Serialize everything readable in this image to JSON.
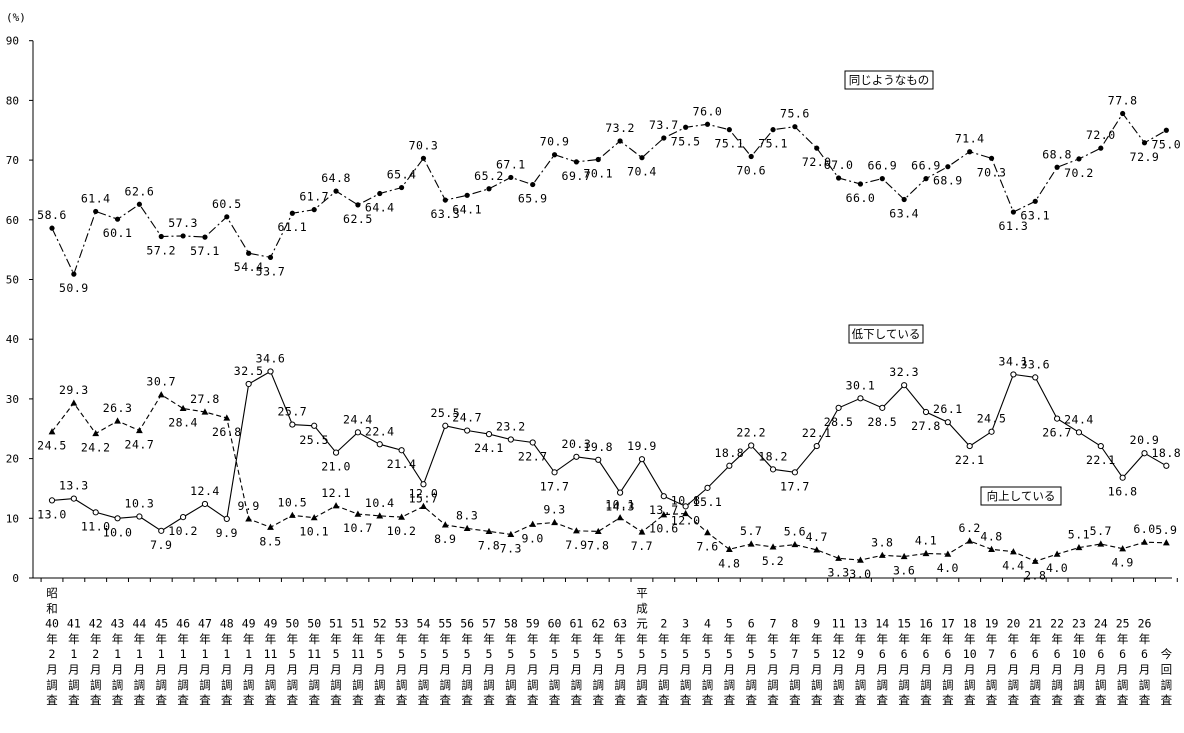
{
  "chart_data": {
    "type": "line",
    "ylabel": "(%)",
    "ylim": [
      0,
      90
    ],
    "yticks": [
      0,
      10,
      20,
      30,
      40,
      50,
      60,
      70,
      80,
      90
    ],
    "grid": false,
    "categories": [
      [
        "昭",
        "和",
        "40",
        "年",
        "2",
        "月",
        "調",
        "査"
      ],
      [
        "41",
        "年",
        "1",
        "月",
        "調",
        "査"
      ],
      [
        "42",
        "年",
        "2",
        "月",
        "調",
        "査"
      ],
      [
        "43",
        "年",
        "1",
        "月",
        "調",
        "査"
      ],
      [
        "44",
        "年",
        "1",
        "月",
        "調",
        "査"
      ],
      [
        "45",
        "年",
        "1",
        "月",
        "調",
        "査"
      ],
      [
        "46",
        "年",
        "1",
        "月",
        "調",
        "査"
      ],
      [
        "47",
        "年",
        "1",
        "月",
        "調",
        "査"
      ],
      [
        "48",
        "年",
        "1",
        "月",
        "調",
        "査"
      ],
      [
        "49",
        "年",
        "1",
        "月",
        "調",
        "査"
      ],
      [
        "49",
        "年",
        "11",
        "月",
        "調",
        "査"
      ],
      [
        "50",
        "年",
        "5",
        "月",
        "調",
        "査"
      ],
      [
        "50",
        "年",
        "11",
        "月",
        "調",
        "査"
      ],
      [
        "51",
        "年",
        "5",
        "月",
        "調",
        "査"
      ],
      [
        "51",
        "年",
        "11",
        "月",
        "調",
        "査"
      ],
      [
        "52",
        "年",
        "5",
        "月",
        "調",
        "査"
      ],
      [
        "53",
        "年",
        "5",
        "月",
        "調",
        "査"
      ],
      [
        "54",
        "年",
        "5",
        "月",
        "調",
        "査"
      ],
      [
        "55",
        "年",
        "5",
        "月",
        "調",
        "査"
      ],
      [
        "56",
        "年",
        "5",
        "月",
        "調",
        "査"
      ],
      [
        "57",
        "年",
        "5",
        "月",
        "調",
        "査"
      ],
      [
        "58",
        "年",
        "5",
        "月",
        "調",
        "査"
      ],
      [
        "59",
        "年",
        "5",
        "月",
        "調",
        "査"
      ],
      [
        "60",
        "年",
        "5",
        "月",
        "調",
        "査"
      ],
      [
        "61",
        "年",
        "5",
        "月",
        "調",
        "査"
      ],
      [
        "62",
        "年",
        "5",
        "月",
        "調",
        "査"
      ],
      [
        "63",
        "年",
        "5",
        "月",
        "調",
        "査"
      ],
      [
        "平",
        "成",
        "元",
        "年",
        "5",
        "月",
        "調",
        "査"
      ],
      [
        "2",
        "年",
        "5",
        "月",
        "調",
        "査"
      ],
      [
        "3",
        "年",
        "5",
        "月",
        "調",
        "査"
      ],
      [
        "4",
        "年",
        "5",
        "月",
        "調",
        "査"
      ],
      [
        "5",
        "年",
        "5",
        "月",
        "調",
        "査"
      ],
      [
        "6",
        "年",
        "5",
        "月",
        "調",
        "査"
      ],
      [
        "7",
        "年",
        "5",
        "月",
        "調",
        "査"
      ],
      [
        "8",
        "年",
        "7",
        "月",
        "調",
        "査"
      ],
      [
        "9",
        "年",
        "5",
        "月",
        "調",
        "査"
      ],
      [
        "11",
        "年",
        "12",
        "月",
        "調",
        "査"
      ],
      [
        "13",
        "年",
        "9",
        "月",
        "調",
        "査"
      ],
      [
        "14",
        "年",
        "6",
        "月",
        "調",
        "査"
      ],
      [
        "15",
        "年",
        "6",
        "月",
        "調",
        "査"
      ],
      [
        "16",
        "年",
        "6",
        "月",
        "調",
        "査"
      ],
      [
        "17",
        "年",
        "6",
        "月",
        "調",
        "査"
      ],
      [
        "18",
        "年",
        "10",
        "月",
        "調",
        "査"
      ],
      [
        "19",
        "年",
        "7",
        "月",
        "調",
        "査"
      ],
      [
        "20",
        "年",
        "6",
        "月",
        "調",
        "査"
      ],
      [
        "21",
        "年",
        "6",
        "月",
        "調",
        "査"
      ],
      [
        "22",
        "年",
        "6",
        "月",
        "調",
        "査"
      ],
      [
        "23",
        "年",
        "10",
        "月",
        "調",
        "査"
      ],
      [
        "24",
        "年",
        "6",
        "月",
        "調",
        "査"
      ],
      [
        "25",
        "年",
        "6",
        "月",
        "調",
        "査"
      ],
      [
        "26",
        "年",
        "6",
        "月",
        "調",
        "査"
      ],
      [
        "今",
        "回",
        "調",
        "査"
      ]
    ],
    "series": [
      {
        "name": "同じようなもの",
        "style": "dash-dot",
        "marker": "filled-circle",
        "color": "#000000",
        "values": [
          58.6,
          50.9,
          61.4,
          60.1,
          62.6,
          57.2,
          57.3,
          57.1,
          60.5,
          54.4,
          53.7,
          61.1,
          61.7,
          64.8,
          62.5,
          64.4,
          65.4,
          70.3,
          63.3,
          64.1,
          65.2,
          67.1,
          65.9,
          70.9,
          69.7,
          70.1,
          73.2,
          70.4,
          73.7,
          75.5,
          76.0,
          75.1,
          70.6,
          75.1,
          75.6,
          72.0,
          67.0,
          66.0,
          66.9,
          63.4,
          66.9,
          68.9,
          71.4,
          70.3,
          61.3,
          63.1,
          68.8,
          70.2,
          72.0,
          77.8,
          72.9,
          75.0
        ],
        "labels": [
          "58.6",
          "50.9",
          "61.4",
          "60.1",
          "62.6",
          "57.2",
          "57.3",
          "57.1",
          "60.5",
          "54.4",
          "53.7",
          "61.1",
          "61.7",
          "64.8",
          "62.5",
          "64.4",
          "65.4",
          "70.3",
          "63.3",
          "64.1",
          "65.2",
          "67.1",
          "65.9",
          "70.9",
          "69.7",
          "70.1",
          "73.2",
          "70.4",
          "73.7",
          "75.5",
          "76.0",
          "75.1",
          "70.6",
          "75.1",
          "75.6",
          "72.0",
          "67.0",
          "66.0",
          "66.9",
          "63.4",
          "66.9",
          "68.9",
          "71.4",
          "70.3",
          "61.3",
          "63.1",
          "68.8",
          "70.2",
          "72.0",
          "77.8",
          "72.9",
          "75.0"
        ]
      },
      {
        "name": "低下している",
        "style": "solid",
        "marker": "open-circle",
        "color": "#000000",
        "values": [
          13.0,
          13.3,
          11.0,
          10.0,
          10.3,
          7.9,
          10.2,
          12.4,
          9.9,
          32.5,
          34.6,
          25.7,
          25.5,
          21.0,
          24.4,
          22.4,
          21.4,
          15.7,
          25.5,
          24.7,
          24.1,
          23.2,
          22.7,
          17.7,
          20.3,
          19.8,
          14.3,
          19.9,
          13.7,
          12.0,
          15.1,
          18.8,
          22.2,
          18.2,
          17.7,
          22.1,
          28.5,
          30.1,
          28.5,
          32.3,
          27.8,
          26.1,
          22.1,
          24.5,
          34.1,
          33.6,
          26.7,
          24.4,
          22.1,
          16.8,
          20.9,
          18.8
        ],
        "labels": [
          "13.0",
          "13.3",
          "11.0",
          "10.0",
          "10.3",
          "7.9",
          "10.2",
          "12.4",
          "9.9",
          "32.5",
          "34.6",
          "25.7",
          "25.5",
          "21.0",
          "24.4",
          "22.4",
          "21.4",
          "15.7",
          "25.5",
          "24.7",
          "24.1",
          "23.2",
          "22.7",
          "17.7",
          "20.3",
          "19.8",
          "14.3",
          "19.9",
          "13.7",
          "12.0",
          "15.1",
          "18.8",
          "22.2",
          "18.2",
          "17.7",
          "22.1",
          "28.5",
          "30.1",
          "28.5",
          "32.3",
          "27.8",
          "26.1",
          "22.1",
          "24.5",
          "34.1",
          "33.6",
          "26.7",
          "24.4",
          "22.1",
          "16.8",
          "20.9",
          "18.8"
        ]
      },
      {
        "name": "向上している",
        "style": "dashed",
        "marker": "filled-triangle",
        "color": "#000000",
        "values": [
          24.5,
          29.3,
          24.2,
          26.3,
          24.7,
          30.7,
          28.4,
          27.8,
          26.8,
          9.9,
          8.5,
          10.5,
          10.1,
          12.1,
          10.7,
          10.4,
          10.2,
          12.0,
          8.9,
          8.3,
          7.8,
          7.3,
          9.0,
          9.3,
          7.9,
          7.8,
          10.1,
          7.7,
          10.6,
          10.8,
          7.6,
          4.8,
          5.7,
          5.2,
          5.6,
          4.7,
          3.3,
          3.0,
          3.8,
          3.6,
          4.1,
          4.0,
          6.2,
          4.8,
          4.4,
          2.8,
          4.0,
          5.1,
          5.7,
          4.9,
          6.0,
          5.9
        ],
        "labels": [
          "24.5",
          "29.3",
          "24.2",
          "26.3",
          "24.7",
          "30.7",
          "28.4",
          "27.8",
          "26.8",
          "9.9",
          "8.5",
          "10.5",
          "10.1",
          "12.1",
          "10.7",
          "10.4",
          "10.2",
          "12.0",
          "8.9",
          "8.3",
          "7.8",
          "7.3",
          "9.0",
          "9.3",
          "7.9",
          "7.8",
          "10.1",
          "7.7",
          "10.6",
          "10.8",
          "7.6",
          "4.8",
          "5.7",
          "5.2",
          "5.6",
          "4.7",
          "3.3",
          "3.0",
          "3.8",
          "3.6",
          "4.1",
          "4.0",
          "6.2",
          "4.8",
          "4.4",
          "2.8",
          "4.0",
          "5.1",
          "5.7",
          "4.9",
          "6.0",
          "5.9"
        ]
      }
    ],
    "legend": {
      "placement": "inline-boxed",
      "labels": [
        "同じようなもの",
        "低下している",
        "向上している"
      ]
    }
  }
}
